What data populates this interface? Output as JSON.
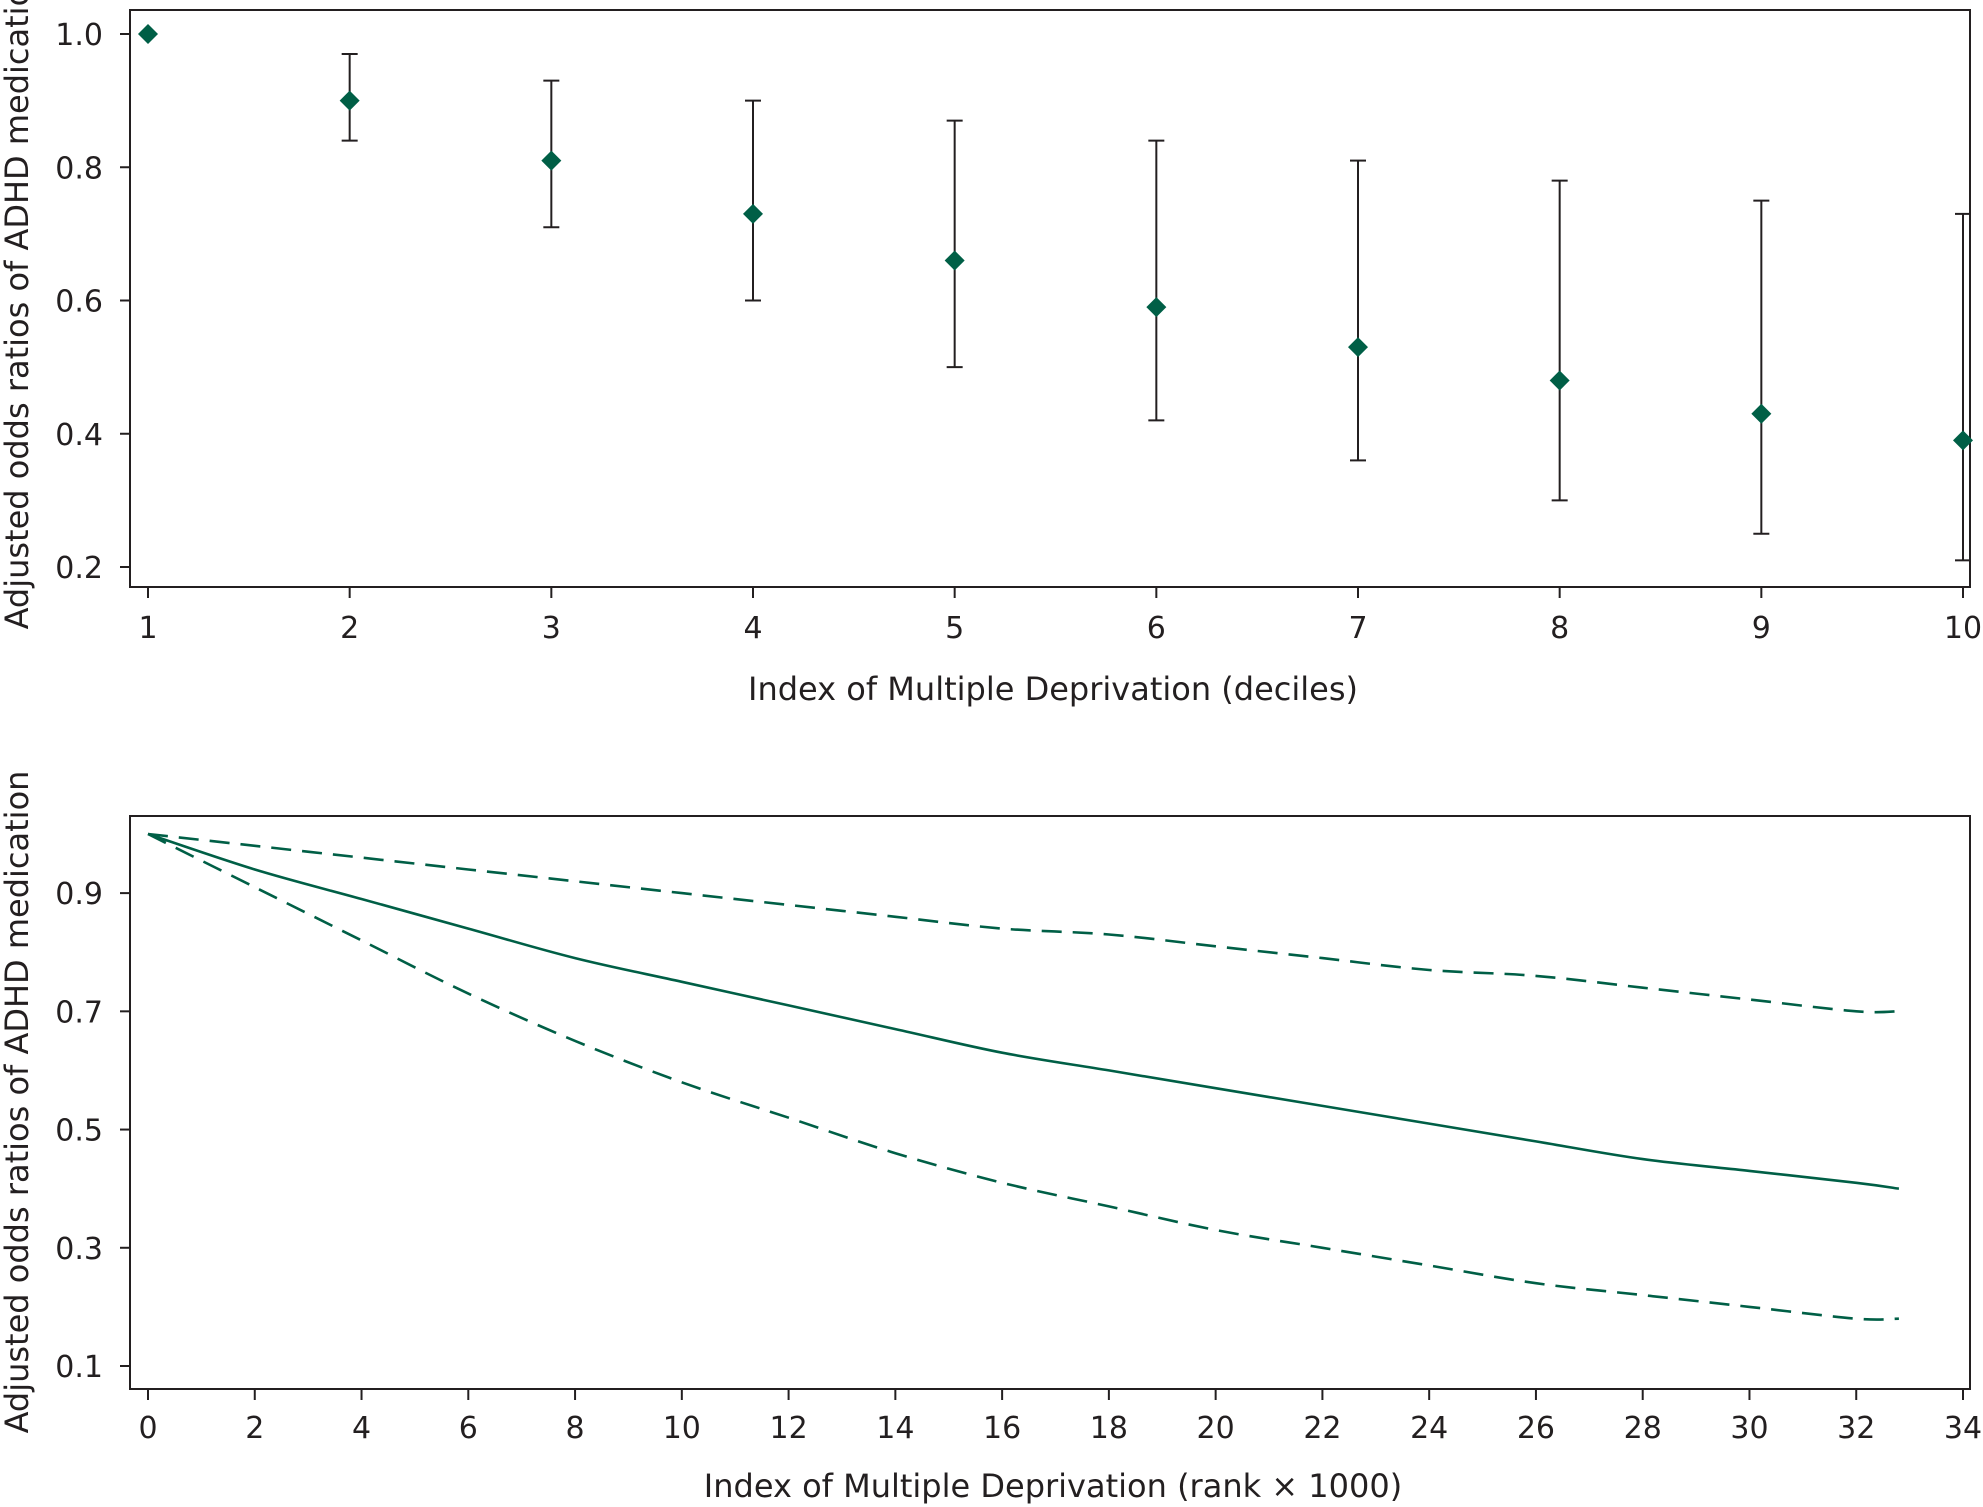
{
  "chart_data": [
    {
      "type": "scatter",
      "title": "",
      "xlabel": "Index of Multiple Deprivation (deciles)",
      "ylabel": "Adjusted odds ratios of ADHD medication",
      "x": [
        1,
        2,
        3,
        4,
        5,
        6,
        7,
        8,
        9,
        10
      ],
      "estimate": [
        1.0,
        0.9,
        0.81,
        0.73,
        0.66,
        0.59,
        0.53,
        0.48,
        0.43,
        0.39
      ],
      "ci_lower": [
        null,
        0.84,
        0.71,
        0.6,
        0.5,
        0.42,
        0.36,
        0.3,
        0.25,
        0.21
      ],
      "ci_upper": [
        null,
        0.97,
        0.93,
        0.9,
        0.87,
        0.84,
        0.81,
        0.78,
        0.75,
        0.73
      ],
      "xlim": [
        1,
        10
      ],
      "ylim": [
        0.17,
        1.0
      ],
      "xticks": [
        1,
        2,
        3,
        4,
        5,
        6,
        7,
        8,
        9,
        10
      ],
      "xtick_labels": [
        "1",
        "2",
        "3",
        "4",
        "5",
        "6",
        "7",
        "8",
        "9",
        "10"
      ],
      "yticks": [
        0.2,
        0.4,
        0.6,
        0.8,
        1.0
      ],
      "ytick_labels": [
        "0.2",
        "0.4",
        "0.6",
        "0.8",
        "1.0"
      ],
      "grid": false,
      "marker": "diamond",
      "color": "#005f46"
    },
    {
      "type": "line",
      "title": "",
      "xlabel": "Index of Multiple Deprivation (rank × 1000)",
      "ylabel": "Adjusted odds ratios of ADHD medication",
      "x": [
        0,
        2,
        4,
        6,
        8,
        10,
        12,
        14,
        16,
        18,
        20,
        22,
        24,
        26,
        28,
        30,
        32,
        32.8
      ],
      "series": [
        {
          "values": [
            1.0,
            0.94,
            0.89,
            0.84,
            0.79,
            0.75,
            0.71,
            0.67,
            0.63,
            0.6,
            0.57,
            0.54,
            0.51,
            0.48,
            0.45,
            0.43,
            0.41,
            0.4
          ],
          "style": "solid"
        },
        {
          "values": [
            1.0,
            0.98,
            0.96,
            0.94,
            0.92,
            0.9,
            0.88,
            0.86,
            0.84,
            0.83,
            0.81,
            0.79,
            0.77,
            0.76,
            0.74,
            0.72,
            0.7,
            0.7
          ],
          "style": "dashed"
        },
        {
          "values": [
            1.0,
            0.91,
            0.82,
            0.73,
            0.65,
            0.58,
            0.52,
            0.46,
            0.41,
            0.37,
            0.33,
            0.3,
            0.27,
            0.24,
            0.22,
            0.2,
            0.18,
            0.18
          ],
          "style": "dashed"
        }
      ],
      "xlim": [
        -0.4,
        34
      ],
      "ylim": [
        0.1,
        1.0
      ],
      "xticks": [
        0,
        2,
        4,
        6,
        8,
        10,
        12,
        14,
        16,
        18,
        20,
        22,
        24,
        26,
        28,
        30,
        32,
        34
      ],
      "xtick_labels": [
        "0",
        "2",
        "4",
        "6",
        "8",
        "10",
        "12",
        "14",
        "16",
        "18",
        "20",
        "22",
        "24",
        "26",
        "28",
        "30",
        "32",
        "34"
      ],
      "yticks": [
        0.1,
        0.3,
        0.5,
        0.7,
        0.9
      ],
      "ytick_labels": [
        "0.1",
        "0.3",
        "0.5",
        "0.7",
        "0.9"
      ],
      "grid": false,
      "color": "#005f46"
    }
  ]
}
